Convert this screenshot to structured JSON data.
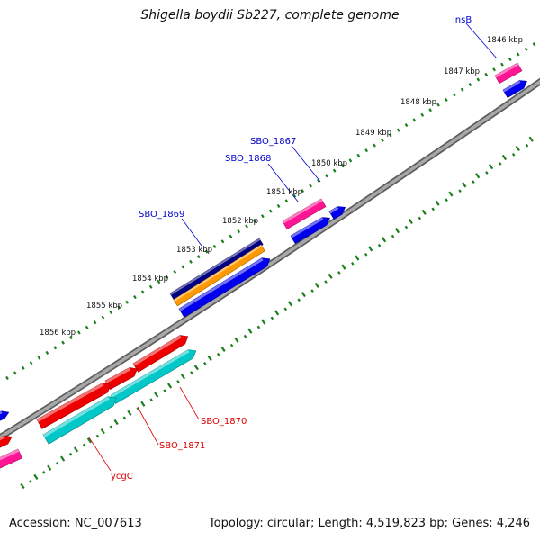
{
  "title": "Shigella boydii Sb227, complete genome",
  "accession_text": "Accession: NC_007613",
  "stats_text": "Topology: circular; Length: 4,519,823 bp; Genes: 4,246",
  "colors": {
    "backbone": "#808080",
    "ticks": "#1a7f1a",
    "label_blue": "#0000cc",
    "label_red": "#dd0000",
    "blue": "#0000ee",
    "magenta": "#ff1493",
    "red": "#ee0000",
    "cyan": "#00c8c8",
    "navy": "#000080",
    "orange": "#ff9900"
  },
  "kbp_labels": [
    "1846 kbp",
    "1847 kbp",
    "1848 kbp",
    "1849 kbp",
    "1850 kbp",
    "1851 kbp",
    "1852 kbp",
    "1853 kbp",
    "1854 kbp",
    "1855 kbp",
    "1856 kbp"
  ],
  "gene_labels": [
    "insB",
    "SBO_1867",
    "SBO_1868",
    "SBO_1869",
    "SBO_1870",
    "SBO_1871",
    "ycgC"
  ]
}
